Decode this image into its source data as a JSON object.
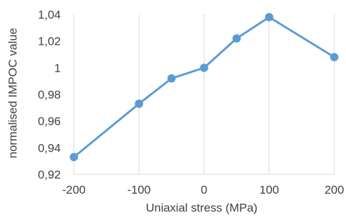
{
  "chart_data": {
    "type": "line",
    "title": "",
    "xlabel": "Uniaxial stress (MPa)",
    "ylabel": "normalised IMPOC value",
    "xlim": [
      -200,
      200
    ],
    "ylim": [
      0.92,
      1.04
    ],
    "x_ticks": [
      -200,
      -100,
      0,
      100,
      200
    ],
    "x_tick_labels": [
      "-200",
      "-100",
      "0",
      "100",
      "200"
    ],
    "y_ticks": [
      0.92,
      0.94,
      0.96,
      0.98,
      1.0,
      1.02,
      1.04
    ],
    "y_tick_labels": [
      "0,92",
      "0,94",
      "0,96",
      "0,98",
      "1",
      "1,02",
      "1,04"
    ],
    "grid": "vertical",
    "legend": "none",
    "series": [
      {
        "color": "#5B9BD5",
        "marker": "circle",
        "points": [
          {
            "x": -200,
            "y": 0.933
          },
          {
            "x": -100,
            "y": 0.973
          },
          {
            "x": -50,
            "y": 0.992
          },
          {
            "x": 0,
            "y": 1.0
          },
          {
            "x": 50,
            "y": 1.022
          },
          {
            "x": 100,
            "y": 1.038
          },
          {
            "x": 200,
            "y": 1.008
          }
        ]
      }
    ],
    "colors": {
      "line": "#5B9BD5",
      "grid": "#D9D9D9",
      "text": "#404040"
    }
  }
}
